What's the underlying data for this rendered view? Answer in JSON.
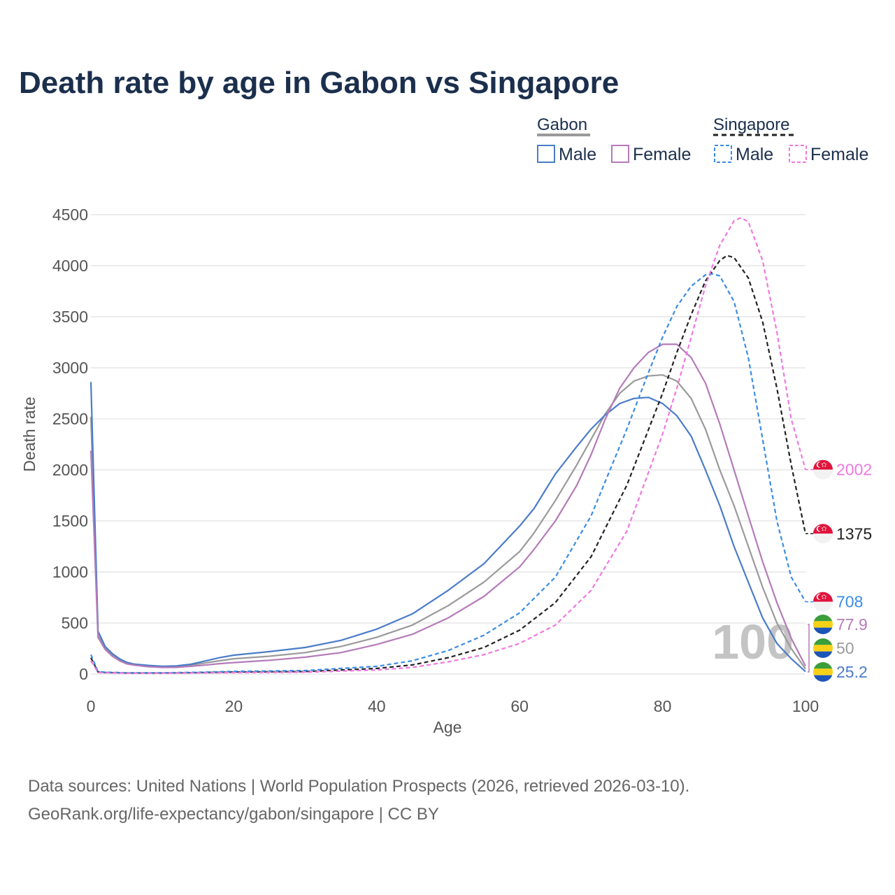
{
  "chart_data": {
    "type": "line",
    "title": "Death rate by age in Gabon vs Singapore",
    "xlabel": "Age",
    "ylabel": "Death rate",
    "xlim": [
      0,
      100
    ],
    "ylim": [
      0,
      4500
    ],
    "x_ticks": [
      0,
      20,
      40,
      60,
      80,
      100
    ],
    "y_ticks": [
      0,
      500,
      1000,
      1500,
      2000,
      2500,
      3000,
      3500,
      4000,
      4500
    ],
    "grid": true,
    "legend": {
      "placement": "top-right",
      "groups": [
        {
          "name": "Gabon",
          "style": "solid",
          "items": [
            "Male",
            "Female"
          ]
        },
        {
          "name": "Singapore",
          "style": "dashed",
          "items": [
            "Male",
            "Female"
          ]
        }
      ]
    },
    "year_watermark": "100",
    "series": [
      {
        "name": "Gabon Both",
        "country": "Gabon",
        "sex": "Both",
        "color": "#9a9a9a",
        "dash": false,
        "points": [
          [
            0,
            2520
          ],
          [
            1,
            380
          ],
          [
            2,
            260
          ],
          [
            3,
            190
          ],
          [
            4,
            140
          ],
          [
            5,
            110
          ],
          [
            6,
            95
          ],
          [
            8,
            80
          ],
          [
            10,
            72
          ],
          [
            12,
            74
          ],
          [
            14,
            88
          ],
          [
            16,
            108
          ],
          [
            18,
            130
          ],
          [
            20,
            150
          ],
          [
            25,
            175
          ],
          [
            30,
            210
          ],
          [
            35,
            270
          ],
          [
            40,
            360
          ],
          [
            45,
            480
          ],
          [
            50,
            670
          ],
          [
            55,
            900
          ],
          [
            60,
            1200
          ],
          [
            62,
            1380
          ],
          [
            65,
            1700
          ],
          [
            68,
            2050
          ],
          [
            70,
            2300
          ],
          [
            72,
            2550
          ],
          [
            74,
            2750
          ],
          [
            76,
            2870
          ],
          [
            78,
            2920
          ],
          [
            80,
            2930
          ],
          [
            82,
            2870
          ],
          [
            84,
            2700
          ],
          [
            86,
            2400
          ],
          [
            88,
            2000
          ],
          [
            90,
            1650
          ],
          [
            92,
            1250
          ],
          [
            94,
            850
          ],
          [
            96,
            500
          ],
          [
            98,
            250
          ],
          [
            100,
            50
          ]
        ],
        "end_value": 50
      },
      {
        "name": "Gabon Male",
        "country": "Gabon",
        "sex": "Male",
        "color": "#4a7cc9",
        "dash": false,
        "points": [
          [
            0,
            2860
          ],
          [
            1,
            420
          ],
          [
            2,
            270
          ],
          [
            3,
            200
          ],
          [
            4,
            150
          ],
          [
            5,
            115
          ],
          [
            6,
            98
          ],
          [
            8,
            85
          ],
          [
            10,
            77
          ],
          [
            12,
            80
          ],
          [
            14,
            96
          ],
          [
            16,
            128
          ],
          [
            18,
            160
          ],
          [
            20,
            185
          ],
          [
            25,
            220
          ],
          [
            30,
            260
          ],
          [
            35,
            330
          ],
          [
            40,
            440
          ],
          [
            45,
            590
          ],
          [
            50,
            820
          ],
          [
            55,
            1080
          ],
          [
            60,
            1450
          ],
          [
            62,
            1620
          ],
          [
            65,
            1960
          ],
          [
            68,
            2230
          ],
          [
            70,
            2400
          ],
          [
            72,
            2540
          ],
          [
            74,
            2650
          ],
          [
            76,
            2700
          ],
          [
            78,
            2710
          ],
          [
            80,
            2650
          ],
          [
            82,
            2530
          ],
          [
            84,
            2330
          ],
          [
            86,
            2000
          ],
          [
            88,
            1650
          ],
          [
            90,
            1250
          ],
          [
            92,
            900
          ],
          [
            94,
            550
          ],
          [
            96,
            300
          ],
          [
            98,
            150
          ],
          [
            100,
            25
          ]
        ],
        "end_value": 25.2
      },
      {
        "name": "Gabon Female",
        "country": "Gabon",
        "sex": "Female",
        "color": "#b57bb9",
        "dash": false,
        "points": [
          [
            0,
            2190
          ],
          [
            1,
            360
          ],
          [
            2,
            240
          ],
          [
            3,
            175
          ],
          [
            4,
            130
          ],
          [
            5,
            100
          ],
          [
            6,
            88
          ],
          [
            8,
            72
          ],
          [
            10,
            65
          ],
          [
            12,
            66
          ],
          [
            14,
            76
          ],
          [
            16,
            88
          ],
          [
            18,
            102
          ],
          [
            20,
            112
          ],
          [
            25,
            135
          ],
          [
            30,
            165
          ],
          [
            35,
            210
          ],
          [
            40,
            290
          ],
          [
            45,
            390
          ],
          [
            50,
            550
          ],
          [
            55,
            760
          ],
          [
            60,
            1050
          ],
          [
            62,
            1220
          ],
          [
            65,
            1500
          ],
          [
            68,
            1850
          ],
          [
            70,
            2150
          ],
          [
            72,
            2500
          ],
          [
            74,
            2800
          ],
          [
            76,
            3000
          ],
          [
            78,
            3150
          ],
          [
            80,
            3230
          ],
          [
            82,
            3230
          ],
          [
            84,
            3100
          ],
          [
            86,
            2850
          ],
          [
            88,
            2450
          ],
          [
            90,
            2000
          ],
          [
            92,
            1550
          ],
          [
            94,
            1100
          ],
          [
            96,
            700
          ],
          [
            98,
            350
          ],
          [
            100,
            78
          ]
        ],
        "end_value": 77.9
      },
      {
        "name": "Singapore Both",
        "country": "Singapore",
        "sex": "Both",
        "color": "#222222",
        "dash": true,
        "points": [
          [
            0,
            160
          ],
          [
            1,
            20
          ],
          [
            2,
            15
          ],
          [
            5,
            10
          ],
          [
            10,
            10
          ],
          [
            15,
            14
          ],
          [
            20,
            20
          ],
          [
            30,
            25
          ],
          [
            40,
            55
          ],
          [
            45,
            90
          ],
          [
            50,
            160
          ],
          [
            55,
            260
          ],
          [
            60,
            430
          ],
          [
            65,
            700
          ],
          [
            70,
            1150
          ],
          [
            75,
            1850
          ],
          [
            80,
            2750
          ],
          [
            82,
            3150
          ],
          [
            84,
            3520
          ],
          [
            86,
            3850
          ],
          [
            88,
            4050
          ],
          [
            89,
            4100
          ],
          [
            90,
            4080
          ],
          [
            92,
            3880
          ],
          [
            94,
            3450
          ],
          [
            96,
            2800
          ],
          [
            98,
            2050
          ],
          [
            100,
            1375
          ]
        ],
        "end_value": 1375
      },
      {
        "name": "Singapore Male",
        "country": "Singapore",
        "sex": "Male",
        "color": "#3b8ce6",
        "dash": true,
        "points": [
          [
            0,
            190
          ],
          [
            1,
            25
          ],
          [
            2,
            18
          ],
          [
            5,
            12
          ],
          [
            10,
            12
          ],
          [
            15,
            17
          ],
          [
            20,
            26
          ],
          [
            30,
            34
          ],
          [
            40,
            75
          ],
          [
            45,
            130
          ],
          [
            50,
            230
          ],
          [
            55,
            380
          ],
          [
            60,
            600
          ],
          [
            65,
            950
          ],
          [
            70,
            1550
          ],
          [
            75,
            2400
          ],
          [
            78,
            2950
          ],
          [
            80,
            3300
          ],
          [
            82,
            3600
          ],
          [
            84,
            3800
          ],
          [
            86,
            3910
          ],
          [
            87,
            3920
          ],
          [
            88,
            3900
          ],
          [
            90,
            3650
          ],
          [
            92,
            3100
          ],
          [
            94,
            2300
          ],
          [
            96,
            1500
          ],
          [
            98,
            950
          ],
          [
            100,
            708
          ]
        ],
        "end_value": 708
      },
      {
        "name": "Singapore Female",
        "country": "Singapore",
        "sex": "Female",
        "color": "#f078e0",
        "dash": true,
        "points": [
          [
            0,
            130
          ],
          [
            1,
            15
          ],
          [
            2,
            12
          ],
          [
            5,
            8
          ],
          [
            10,
            8
          ],
          [
            15,
            10
          ],
          [
            20,
            14
          ],
          [
            30,
            18
          ],
          [
            40,
            40
          ],
          [
            45,
            65
          ],
          [
            50,
            120
          ],
          [
            55,
            190
          ],
          [
            60,
            300
          ],
          [
            65,
            480
          ],
          [
            70,
            820
          ],
          [
            75,
            1400
          ],
          [
            80,
            2350
          ],
          [
            82,
            2800
          ],
          [
            84,
            3300
          ],
          [
            86,
            3800
          ],
          [
            88,
            4200
          ],
          [
            90,
            4440
          ],
          [
            91,
            4470
          ],
          [
            92,
            4430
          ],
          [
            94,
            4050
          ],
          [
            96,
            3350
          ],
          [
            98,
            2500
          ],
          [
            100,
            2002
          ]
        ],
        "end_value": 2002
      }
    ]
  },
  "source": {
    "line1": "Data sources: United Nations | World Population Prospects (2026, retrieved 2026-03-10).",
    "line2": "GeoRank.org/life-expectancy/gabon/singapore | CC BY"
  },
  "icons": {
    "gabon_flag": "gabon-flag-icon",
    "singapore_flag": "singapore-flag-icon"
  },
  "colors": {
    "title": "#1b2f4d",
    "grid": "#e6e6e6"
  }
}
